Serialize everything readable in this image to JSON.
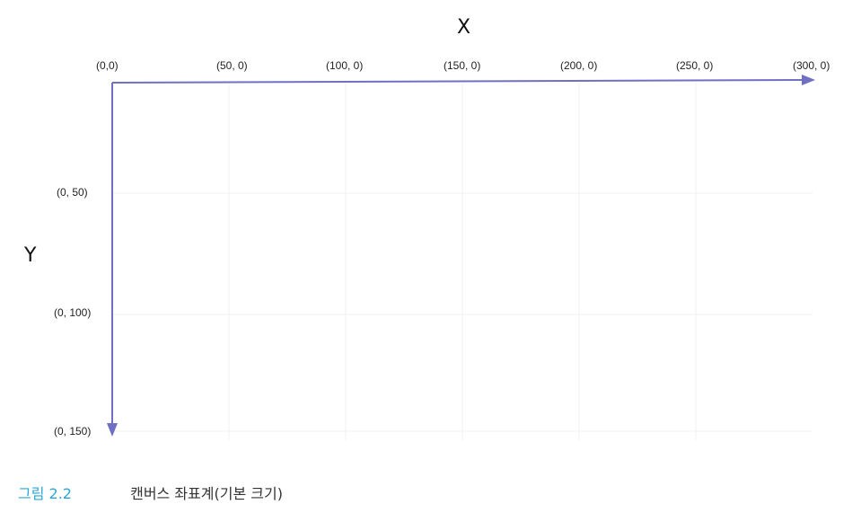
{
  "figure": {
    "x_axis_name": "X",
    "y_axis_name": "Y",
    "x_ticks": [
      "(0,0)",
      "(50, 0)",
      "(100, 0)",
      "(150, 0)",
      "(200, 0)",
      "(250, 0)",
      "(300, 0)"
    ],
    "y_ticks": [
      "(0, 50)",
      "(0, 100)",
      "(0, 150)"
    ],
    "axis_color": "#6f6fc4",
    "grid_color": "#f2f2f2"
  },
  "caption": {
    "number": "그림 2.2",
    "title": "캔버스 좌표계(기본 크기)",
    "number_color": "#2aa6d6"
  }
}
